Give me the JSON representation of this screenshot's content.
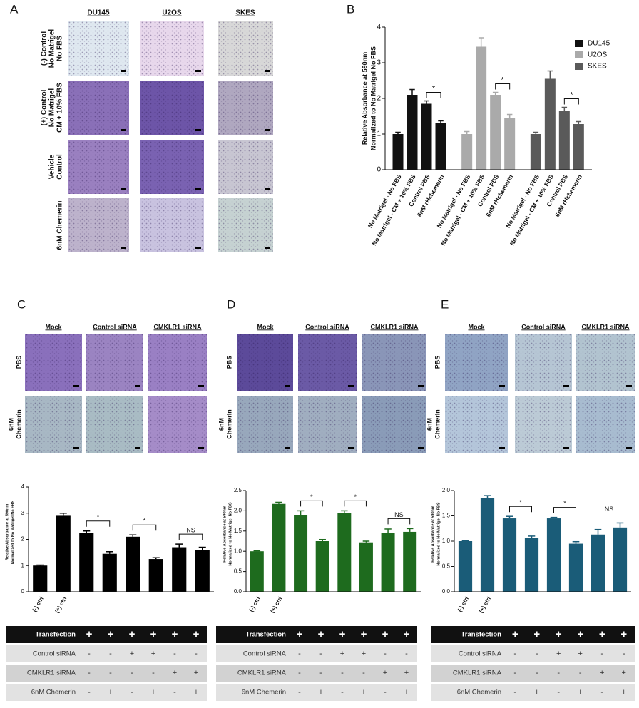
{
  "figure": {
    "panel_labels": [
      "A",
      "B",
      "C",
      "D",
      "E"
    ],
    "panel_a": {
      "columns": [
        "DU145",
        "U2OS",
        "SKES"
      ],
      "rows": [
        [
          "(-) Control",
          "No Matrigel",
          "No FBS"
        ],
        [
          "(+) Control",
          "No Matrigel",
          "CM + 10% FBS"
        ],
        [
          "Vehicle",
          "Control"
        ],
        [
          "6nM Chemerin"
        ]
      ]
    },
    "panel_c": {
      "columns": [
        "Mock",
        "Control siRNA",
        "CMKLR1 siRNA"
      ],
      "rows": [
        [
          "PBS"
        ],
        [
          "6nM",
          "Chemerin"
        ]
      ]
    },
    "panel_d": {
      "columns": [
        "Mock",
        "Control siRNA",
        "CMKLR1 siRNA"
      ],
      "rows": [
        [
          "PBS"
        ],
        [
          "6nM",
          "Chemerin"
        ]
      ]
    },
    "panel_e": {
      "columns": [
        "Mock",
        "Control siRNA",
        "CMKLR1 siRNA"
      ],
      "rows": [
        [
          "PBS"
        ],
        [
          "6nM",
          "Chemerin"
        ]
      ]
    }
  },
  "chart_data": [
    {
      "type": "grouped-bar",
      "ylabel": [
        "Relative Absorbance at 590nm",
        "Normalized to No Matrigel No FBS"
      ],
      "categories": [
        "No Matrigel - No FBS",
        "No Matrigel - CM + 10% FBS",
        "Control PBS",
        "6nM rHchemerin"
      ],
      "series": [
        {
          "name": "DU145",
          "color": "#111111",
          "values": [
            1.0,
            2.1,
            1.85,
            1.3
          ],
          "errors": [
            0.05,
            0.15,
            0.08,
            0.07
          ]
        },
        {
          "name": "U2OS",
          "color": "#aaaaaa",
          "values": [
            1.0,
            3.45,
            2.1,
            1.45
          ],
          "errors": [
            0.07,
            0.25,
            0.07,
            0.1
          ]
        },
        {
          "name": "SKES",
          "color": "#5a5a5a",
          "values": [
            1.0,
            2.55,
            1.65,
            1.28
          ],
          "errors": [
            0.05,
            0.22,
            0.1,
            0.07
          ]
        }
      ],
      "annotations": [
        "*",
        "*",
        "*"
      ],
      "ylim": [
        0,
        4
      ],
      "yticks": [
        0,
        1,
        2,
        3,
        4
      ],
      "legend": "upper right"
    },
    {
      "type": "bar",
      "ylabel": [
        "Relative Absorbance at 590nm",
        "Normalized to No Matrigel No FBS"
      ],
      "categories": [
        "(-) ctrl",
        "(+) ctrl",
        null,
        null,
        null,
        null,
        null,
        null
      ],
      "values": [
        1.0,
        2.9,
        2.25,
        1.45,
        2.1,
        1.25,
        1.7,
        1.6
      ],
      "errors": [
        0.02,
        0.1,
        0.07,
        0.08,
        0.07,
        0.05,
        0.12,
        0.1
      ],
      "color": "#000000",
      "annotations": [
        "*",
        "*",
        "NS"
      ],
      "ylim": [
        0,
        4
      ],
      "yticks": [
        0,
        1,
        2,
        3,
        4
      ]
    },
    {
      "type": "bar",
      "ylabel": [
        "Relative Absorbance at 590nm",
        "Normalized to No Matrigel No FBS"
      ],
      "categories": [
        "(-) ctrl",
        "(+) ctrl",
        null,
        null,
        null,
        null,
        null,
        null
      ],
      "values": [
        1.0,
        2.17,
        1.9,
        1.25,
        1.95,
        1.22,
        1.45,
        1.48
      ],
      "errors": [
        0.01,
        0.04,
        0.1,
        0.04,
        0.05,
        0.03,
        0.1,
        0.08
      ],
      "color": "#1e6b1e",
      "annotations": [
        "*",
        "*",
        "NS"
      ],
      "ylim": [
        0,
        2.5
      ],
      "yticks": [
        {
          "value": 0,
          "label": "0.0"
        },
        0.5,
        {
          "value": 1,
          "label": "1.0"
        },
        1.5,
        {
          "value": 2,
          "label": "2.0"
        },
        2.5
      ]
    },
    {
      "type": "bar",
      "ylabel": [
        "Relative Absorbance at 590nm",
        "Normalized to No Matrigel No FBS"
      ],
      "categories": [
        "(-) ctrl",
        "(+) ctrl",
        null,
        null,
        null,
        null,
        null,
        null
      ],
      "values": [
        1.0,
        1.85,
        1.45,
        1.07,
        1.45,
        0.95,
        1.13,
        1.27
      ],
      "errors": [
        0.01,
        0.05,
        0.04,
        0.03,
        0.02,
        0.04,
        0.1,
        0.09
      ],
      "color": "#1a5c78",
      "annotations": [
        "*",
        "*",
        "NS"
      ],
      "ylim": [
        0,
        2.0
      ],
      "yticks": [
        {
          "value": 0,
          "label": "0.0"
        },
        0.5,
        {
          "value": 1,
          "label": "1.0"
        },
        1.5,
        {
          "value": 2,
          "label": "2.0"
        }
      ]
    }
  ],
  "tables": [
    {
      "rows": [
        [
          "Transfection",
          "+",
          "+",
          "+",
          "+",
          "+",
          "+"
        ],
        [
          "Control siRNA",
          "-",
          "-",
          "+",
          "+",
          "-",
          "-"
        ],
        [
          "CMKLR1 siRNA",
          "-",
          "-",
          "-",
          "-",
          "+",
          "+"
        ],
        [
          "6nM Chemerin",
          "-",
          "+",
          "-",
          "+",
          "-",
          "+"
        ]
      ]
    },
    {
      "rows": [
        [
          "Transfection",
          "+",
          "+",
          "+",
          "+",
          "+",
          "+"
        ],
        [
          "Control siRNA",
          "-",
          "-",
          "+",
          "+",
          "-",
          "-"
        ],
        [
          "CMKLR1 siRNA",
          "-",
          "-",
          "-",
          "-",
          "+",
          "+"
        ],
        [
          "6nM Chemerin",
          "-",
          "+",
          "-",
          "+",
          "-",
          "+"
        ]
      ]
    },
    {
      "rows": [
        [
          "Transfection",
          "+",
          "+",
          "+",
          "+",
          "+",
          "+"
        ],
        [
          "Control siRNA",
          "-",
          "-",
          "+",
          "+",
          "-",
          "-"
        ],
        [
          "CMKLR1 siRNA",
          "-",
          "-",
          "-",
          "-",
          "+",
          "+"
        ],
        [
          "6nM Chemerin",
          "-",
          "+",
          "-",
          "+",
          "-",
          "+"
        ]
      ]
    }
  ]
}
